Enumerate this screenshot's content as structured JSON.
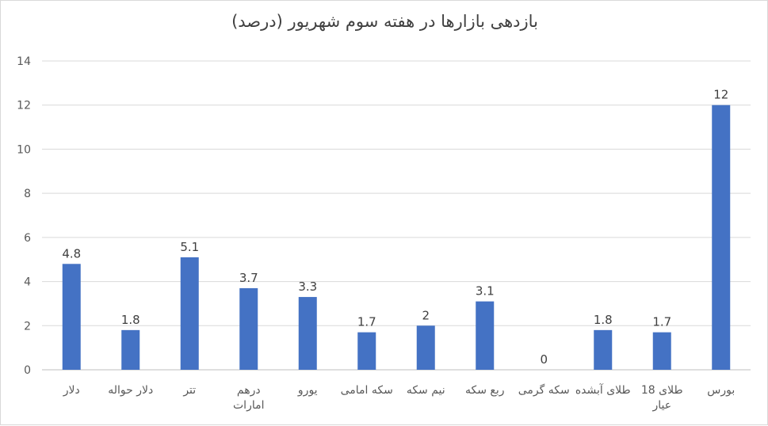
{
  "chart_data": {
    "type": "bar",
    "title": "بازدهی بازارها در هفته سوم شهریور (درصد)",
    "xlabel": "",
    "ylabel": "",
    "ylim": [
      0,
      14
    ],
    "yticks": [
      0,
      2,
      4,
      6,
      8,
      10,
      12,
      14
    ],
    "grid": true,
    "legend": "none",
    "categories": [
      [
        "دلار"
      ],
      [
        "دلار حواله"
      ],
      [
        "تتر"
      ],
      [
        "درهم",
        "امارات"
      ],
      [
        "یورو"
      ],
      [
        "سکه امامی"
      ],
      [
        "نیم سکه"
      ],
      [
        "ربع سکه"
      ],
      [
        "سکه گرمی"
      ],
      [
        "طلای آبشده"
      ],
      [
        "طلای 18",
        "عیار"
      ],
      [
        "بورس"
      ]
    ],
    "values": [
      4.8,
      1.8,
      5.1,
      3.7,
      3.3,
      1.7,
      2,
      3.1,
      0,
      1.8,
      1.7,
      12
    ],
    "colors": {
      "bar": "#4472c4",
      "grid": "#d9d9d9",
      "text": "#595959"
    }
  }
}
